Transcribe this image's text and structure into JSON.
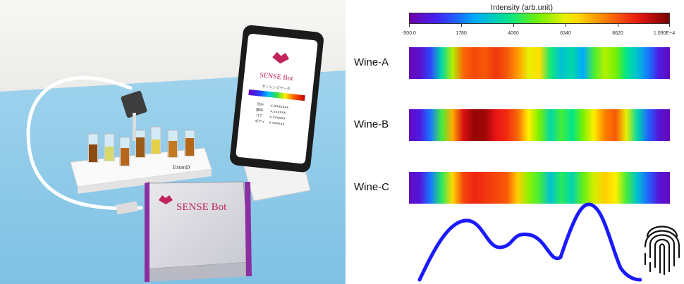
{
  "product": {
    "brand": "SENSE Bot",
    "phone_subtitle": "センシングデータ",
    "phone_readings": [
      {
        "label": "渋み",
        "value": "x.xxxxxxx"
      },
      {
        "label": "酸味",
        "value": "x.xxxxxx"
      },
      {
        "label": "コク",
        "value": "x.xxxxxx"
      },
      {
        "label": "ボディ",
        "value": "x.xxxxxx"
      }
    ],
    "rack_brand": "ExtenD"
  },
  "colorbar": {
    "title": "Intensity (arb.unit)",
    "ticks": [
      "-500.0",
      "1780",
      "4060",
      "6340",
      "8620",
      "1.090E+4"
    ]
  },
  "samples": [
    {
      "label": "Wine-A"
    },
    {
      "label": "Wine-B"
    },
    {
      "label": "Wine-C"
    }
  ],
  "colors": {
    "signal_line": "#1a1aff",
    "background_table": "#a8d8ef",
    "device_accent": "#8b2fa0",
    "brand_text": "#c0245a"
  },
  "icons": [
    "fingerprint-icon",
    "sensesbot-logo-icon"
  ]
}
